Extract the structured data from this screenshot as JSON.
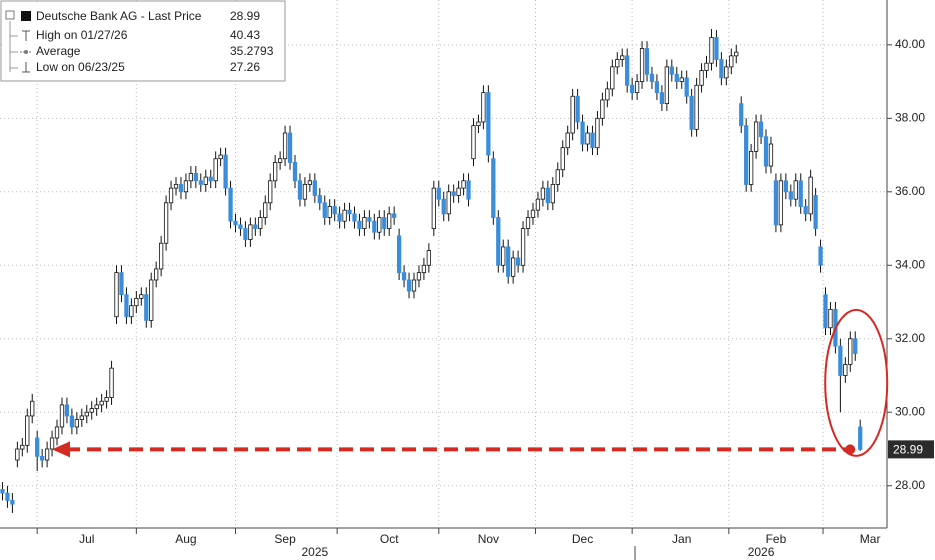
{
  "chart_data": {
    "type": "candlestick",
    "legend": {
      "rows": [
        {
          "label": "High on 01/27/26",
          "value": 40.43
        },
        {
          "label": "Average",
          "value": 35.2793
        },
        {
          "label": "Low on 06/23/25",
          "value": 27.26
        }
      ]
    },
    "series": [
      {
        "name": "Deutsche Bank AG - Last Price",
        "up_color": "#ffffff",
        "down_color": "#3a8ddb",
        "open": [
          27.9,
          27.8,
          27.6,
          28.7,
          29.0,
          29.1,
          29.9,
          29.3,
          28.8,
          28.7,
          29.0,
          29.3,
          29.6,
          30.2,
          29.9,
          29.6,
          29.8,
          29.9,
          30.0,
          30.1,
          30.2,
          30.3,
          30.4,
          32.6,
          33.8,
          33.2,
          32.6,
          32.9,
          33.1,
          33.2,
          32.5,
          33.6,
          33.9,
          34.6,
          35.7,
          36.1,
          36.2,
          36.0,
          36.3,
          36.5,
          36.3,
          36.2,
          36.4,
          36.3,
          36.9,
          37.0,
          36.1,
          35.2,
          35.1,
          35.0,
          34.7,
          35.1,
          35.0,
          35.3,
          35.7,
          36.3,
          36.8,
          36.9,
          37.6,
          36.8,
          36.3,
          35.8,
          36.2,
          36.3,
          35.9,
          35.7,
          35.3,
          35.6,
          35.4,
          35.2,
          35.5,
          35.4,
          35.2,
          35.0,
          35.3,
          35.2,
          34.9,
          35.3,
          35.0,
          35.4,
          34.8,
          33.8,
          33.6,
          33.3,
          33.6,
          33.8,
          34.0,
          35.0,
          36.1,
          35.8,
          35.4,
          36.0,
          35.9,
          36.1,
          36.3,
          36.9,
          37.8,
          37.9,
          38.7,
          36.9,
          35.3,
          34.0,
          34.5,
          33.7,
          34.2,
          34.0,
          35.0,
          35.3,
          35.5,
          35.8,
          36.1,
          35.7,
          36.2,
          36.6,
          37.2,
          37.6,
          38.6,
          37.9,
          37.3,
          37.6,
          37.2,
          38.0,
          38.5,
          38.8,
          39.4,
          39.6,
          39.7,
          38.9,
          38.7,
          39.0,
          39.9,
          39.2,
          39.0,
          38.7,
          38.4,
          39.4,
          39.2,
          39.0,
          39.1,
          38.6,
          37.7,
          38.9,
          39.3,
          39.5,
          40.2,
          39.6,
          39.1,
          39.4,
          39.7,
          38.4,
          37.8,
          36.2,
          37.1,
          37.9,
          37.5,
          36.7,
          36.3,
          35.1,
          36.3,
          36.0,
          35.8,
          36.3,
          35.6,
          35.4,
          35.9,
          34.5,
          33.2,
          32.3,
          32.8,
          31.8,
          31.0,
          31.3,
          32.0,
          29.6
        ],
        "high": [
          28.1,
          28.0,
          27.8,
          29.2,
          29.3,
          30.1,
          30.5,
          29.5,
          29.0,
          29.2,
          29.5,
          29.8,
          30.4,
          30.4,
          30.1,
          30.0,
          30.1,
          30.2,
          30.3,
          30.4,
          30.5,
          30.6,
          31.4,
          34.0,
          34.0,
          33.4,
          33.1,
          33.3,
          33.4,
          33.4,
          33.8,
          34.1,
          34.8,
          35.9,
          36.3,
          36.4,
          36.4,
          36.5,
          36.7,
          36.7,
          36.5,
          36.6,
          36.6,
          37.1,
          37.2,
          37.2,
          36.3,
          35.4,
          35.3,
          35.2,
          35.3,
          35.3,
          35.5,
          35.9,
          36.5,
          37.0,
          37.1,
          37.8,
          37.8,
          37.0,
          36.5,
          36.4,
          36.5,
          36.5,
          36.1,
          35.9,
          35.8,
          35.8,
          35.6,
          35.7,
          35.7,
          35.6,
          35.4,
          35.5,
          35.5,
          35.4,
          35.5,
          35.5,
          35.6,
          35.6,
          35.0,
          34.0,
          33.8,
          33.8,
          34.0,
          34.2,
          34.6,
          36.3,
          36.3,
          36.0,
          36.2,
          36.2,
          36.3,
          36.5,
          36.5,
          38.0,
          38.1,
          38.9,
          38.9,
          37.1,
          35.5,
          34.7,
          34.7,
          34.4,
          34.4,
          35.2,
          35.5,
          35.7,
          36.0,
          36.3,
          36.3,
          36.4,
          36.8,
          37.4,
          37.8,
          38.8,
          38.8,
          38.1,
          37.8,
          37.8,
          38.2,
          38.7,
          39.0,
          39.6,
          39.8,
          39.9,
          39.9,
          39.1,
          39.2,
          40.1,
          40.1,
          39.4,
          39.2,
          38.9,
          39.6,
          39.6,
          39.4,
          39.3,
          39.3,
          38.8,
          39.1,
          39.5,
          39.7,
          40.43,
          40.4,
          39.8,
          39.6,
          39.9,
          40.0,
          38.6,
          38.0,
          37.3,
          38.1,
          38.1,
          37.7,
          37.5,
          36.5,
          36.5,
          36.5,
          36.2,
          36.5,
          36.5,
          35.8,
          36.6,
          36.1,
          34.7,
          33.4,
          33.0,
          33.0,
          32.0,
          31.5,
          32.2,
          32.2,
          29.8
        ],
        "low": [
          27.6,
          27.4,
          27.26,
          28.5,
          28.8,
          28.9,
          29.7,
          28.4,
          28.5,
          28.5,
          28.8,
          29.1,
          29.4,
          29.7,
          29.4,
          29.4,
          29.6,
          29.7,
          29.8,
          29.9,
          30.0,
          30.1,
          30.2,
          32.4,
          33.0,
          32.4,
          32.4,
          32.7,
          32.9,
          32.3,
          32.3,
          33.4,
          33.7,
          34.4,
          35.5,
          35.9,
          35.8,
          35.8,
          36.1,
          36.1,
          36.0,
          36.0,
          36.1,
          36.1,
          36.7,
          35.9,
          35.0,
          34.9,
          34.8,
          34.5,
          34.5,
          34.8,
          34.8,
          35.1,
          35.5,
          36.1,
          36.6,
          36.7,
          36.6,
          36.1,
          35.6,
          35.6,
          36.0,
          35.7,
          35.5,
          35.1,
          35.1,
          35.2,
          35.0,
          35.0,
          35.2,
          35.0,
          34.8,
          34.8,
          35.0,
          34.7,
          34.7,
          34.8,
          34.8,
          35.1,
          33.6,
          33.4,
          33.1,
          33.1,
          33.4,
          33.6,
          33.8,
          34.8,
          35.6,
          35.2,
          35.2,
          35.7,
          35.7,
          35.9,
          35.6,
          36.7,
          37.6,
          37.7,
          36.8,
          35.1,
          33.8,
          33.8,
          33.5,
          33.5,
          33.8,
          33.8,
          34.8,
          35.1,
          35.3,
          35.6,
          35.5,
          35.5,
          36.0,
          36.4,
          37.0,
          37.4,
          37.7,
          37.1,
          37.1,
          37.0,
          37.0,
          37.8,
          38.3,
          38.6,
          39.2,
          39.4,
          38.7,
          38.5,
          38.5,
          38.8,
          39.0,
          38.8,
          38.5,
          38.2,
          38.2,
          39.0,
          38.8,
          38.8,
          38.4,
          37.5,
          37.5,
          38.7,
          39.1,
          39.3,
          39.4,
          38.9,
          38.9,
          39.2,
          39.5,
          37.6,
          36.0,
          36.0,
          36.9,
          37.3,
          36.5,
          36.5,
          34.9,
          34.9,
          35.8,
          35.6,
          35.6,
          35.4,
          35.2,
          35.2,
          34.8,
          33.8,
          32.1,
          32.1,
          31.6,
          30.0,
          30.8,
          31.1,
          31.4,
          28.95
        ],
        "close": [
          27.8,
          27.6,
          27.5,
          29.0,
          29.1,
          29.9,
          30.3,
          28.8,
          28.7,
          29.0,
          29.3,
          29.6,
          30.2,
          29.9,
          29.6,
          29.8,
          29.9,
          30.0,
          30.1,
          30.2,
          30.3,
          30.4,
          31.2,
          33.8,
          33.2,
          32.6,
          32.9,
          33.1,
          33.2,
          32.5,
          33.6,
          33.9,
          34.6,
          35.7,
          36.1,
          36.2,
          36.0,
          36.3,
          36.5,
          36.3,
          36.2,
          36.4,
          36.3,
          36.9,
          37.0,
          36.1,
          35.2,
          35.1,
          35.0,
          34.7,
          35.1,
          35.0,
          35.3,
          35.7,
          36.3,
          36.8,
          36.9,
          37.6,
          36.8,
          36.3,
          35.8,
          36.2,
          36.3,
          35.9,
          35.7,
          35.3,
          35.6,
          35.4,
          35.2,
          35.5,
          35.4,
          35.2,
          35.0,
          35.3,
          35.2,
          34.9,
          35.3,
          35.0,
          35.4,
          35.3,
          33.8,
          33.6,
          33.3,
          33.6,
          33.8,
          34.0,
          34.4,
          36.1,
          35.8,
          35.4,
          36.0,
          35.9,
          36.1,
          36.3,
          35.8,
          37.8,
          37.9,
          38.7,
          37.0,
          35.3,
          34.0,
          34.5,
          33.7,
          34.2,
          34.0,
          35.0,
          35.3,
          35.5,
          35.8,
          36.1,
          35.7,
          36.2,
          36.6,
          37.2,
          37.6,
          38.6,
          37.9,
          37.3,
          37.6,
          37.2,
          38.0,
          38.5,
          38.8,
          39.4,
          39.6,
          39.7,
          38.9,
          38.7,
          39.0,
          39.9,
          39.2,
          39.0,
          38.7,
          38.4,
          39.4,
          39.2,
          39.0,
          39.1,
          38.6,
          37.7,
          38.9,
          39.3,
          39.5,
          40.2,
          39.6,
          39.1,
          39.4,
          39.7,
          39.8,
          37.8,
          36.2,
          37.1,
          37.9,
          37.5,
          36.7,
          37.3,
          35.1,
          36.3,
          36.0,
          35.8,
          36.3,
          35.6,
          35.4,
          36.4,
          35.0,
          34.0,
          32.3,
          32.8,
          31.8,
          31.0,
          31.3,
          32.0,
          31.6,
          28.99
        ]
      }
    ],
    "xlim": [
      -0.5,
      178
    ],
    "xticks": [
      {
        "value": 17,
        "label": "Jul"
      },
      {
        "value": 37,
        "label": "Aug"
      },
      {
        "value": 57,
        "label": "Sep"
      },
      {
        "value": 78,
        "label": "Oct"
      },
      {
        "value": 98,
        "label": "Nov"
      },
      {
        "value": 117,
        "label": "Dec"
      },
      {
        "value": 137,
        "label": "Jan"
      },
      {
        "value": 156,
        "label": "Feb"
      },
      {
        "value": 175,
        "label": "Mar"
      }
    ],
    "x_group_labels": [
      {
        "value": 63,
        "label": "2025"
      },
      {
        "value": 153,
        "label": "2026"
      }
    ],
    "ylim": [
      26.85,
      41.22
    ],
    "yticks": [
      {
        "value": 28,
        "label": "28.00"
      },
      {
        "value": 30,
        "label": "30.00"
      },
      {
        "value": 32,
        "label": "32.00"
      },
      {
        "value": 34,
        "label": "34.00"
      },
      {
        "value": 36,
        "label": "36.00"
      },
      {
        "value": 38,
        "label": "38.00"
      },
      {
        "value": 40,
        "label": "40.00"
      }
    ],
    "grid": true,
    "annotation_color": "#d42a22"
  }
}
